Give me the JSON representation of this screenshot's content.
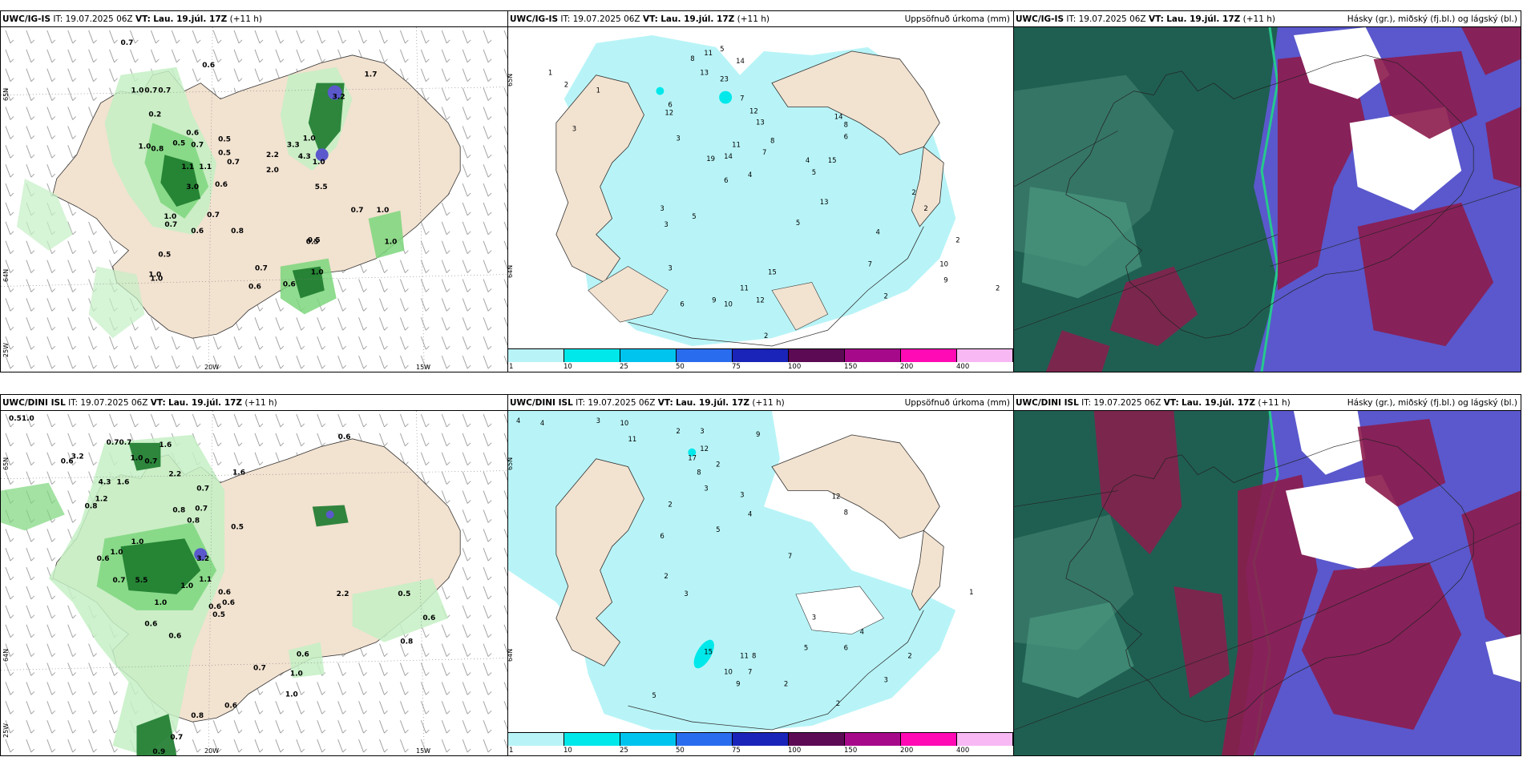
{
  "panels": {
    "p1": {
      "model": "UWC/IG-IS",
      "it_label": "IT:",
      "it_value": "19.07.2025 06Z",
      "vt_label": "VT:",
      "vt_value": "Lau. 19.júl. 17Z",
      "lead": "(+11 h)",
      "right_title": "",
      "labels": [
        "0.7",
        "0.6",
        "1.0",
        "0.7",
        "0.7",
        "0.2",
        "0.6",
        "0.5",
        "0.7",
        "0.5",
        "1.0",
        "0.8",
        "1.1",
        "1.1",
        "3.0",
        "0.5",
        "0.6",
        "0.7",
        "0.7",
        "0.8",
        "1.0",
        "0.6",
        "0.5",
        "1.0",
        "0.7",
        "0.6",
        "0.5",
        "2.2",
        "2.0",
        "3.3",
        "1.0",
        "4.3",
        "1.0",
        "3.2",
        "5.5",
        "1.7",
        "0.7",
        "1.0",
        "0.5",
        "1.0",
        "0.7",
        "0.6",
        "1.0",
        "1.0"
      ],
      "axis": {
        "left_top": "65N",
        "left_mid": "64N",
        "left_bottom": "25W",
        "bottom_left": "20W",
        "bottom_right": "15W"
      }
    },
    "p2": {
      "model": "UWC/IG-IS",
      "it_label": "IT:",
      "it_value": "19.07.2025 06Z",
      "vt_label": "VT:",
      "vt_value": "Lau. 19.júl. 17Z",
      "lead": "(+11 h)",
      "right_title": "Uppsöfnuð úrkoma (mm)",
      "labels": [
        "1",
        "2",
        "1",
        "3",
        "8",
        "11",
        "5",
        "14",
        "13",
        "23",
        "6",
        "12",
        "7",
        "12",
        "13",
        "3",
        "11",
        "19",
        "14",
        "4",
        "6",
        "7",
        "8",
        "15",
        "14",
        "8",
        "6",
        "5",
        "13",
        "4",
        "3",
        "2",
        "2",
        "5",
        "3",
        "15",
        "3",
        "11",
        "12",
        "9",
        "10",
        "6",
        "2",
        "2",
        "4",
        "7",
        "5",
        "10",
        "9",
        "2",
        "2"
      ],
      "axis": {
        "right_top": "65N",
        "right_mid": "64N"
      }
    },
    "p3": {
      "model": "UWC/IG-IS",
      "it_label": "IT:",
      "it_value": "19.07.2025 06Z",
      "vt_label": "VT:",
      "vt_value": "Lau. 19.júl. 17Z",
      "lead": "(+11 h)",
      "right_title": "Hásky (gr.), miðský (fj.bl.) og lágský (bl.)"
    },
    "p4": {
      "model": "UWC/DINI ISL",
      "it_label": "IT:",
      "it_value": "19.07.2025 06Z",
      "vt_label": "VT:",
      "vt_value": "Lau. 19.júl. 17Z",
      "lead": "(+11 h)",
      "right_title": "",
      "labels": [
        "0.5",
        "1.0",
        "0.7",
        "0.7",
        "1.6",
        "0.6",
        "3.2",
        "1.0",
        "0.6",
        "0.7",
        "4.3",
        "1.6",
        "2.2",
        "1.6",
        "1.2",
        "0.7",
        "0.8",
        "0.8",
        "0.8",
        "0.7",
        "0.5",
        "1.0",
        "1.0",
        "3.2",
        "0.6",
        "0.7",
        "5.5",
        "1.0",
        "1.1",
        "0.6",
        "0.6",
        "0.6",
        "1.0",
        "0.5",
        "0.6",
        "0.6",
        "0.7",
        "1.0",
        "2.2",
        "0.5",
        "0.8",
        "0.6",
        "0.6",
        "1.0",
        "0.6",
        "0.8",
        "0.7",
        "0.9"
      ],
      "axis": {
        "left_top": "65N",
        "left_mid": "64N",
        "left_bottom": "25W",
        "bottom_left": "20W",
        "bottom_right": "15W"
      }
    },
    "p5": {
      "model": "UWC/DINI ISL",
      "it_label": "IT:",
      "it_value": "19.07.2025 06Z",
      "vt_label": "VT:",
      "vt_value": "Lau. 19.júl. 17Z",
      "lead": "(+11 h)",
      "right_title": "Uppsöfnuð úrkoma (mm)",
      "labels": [
        "4",
        "4",
        "3",
        "10",
        "2",
        "3",
        "9",
        "12",
        "11",
        "17",
        "2",
        "8",
        "3",
        "12",
        "2",
        "3",
        "4",
        "5",
        "7",
        "8",
        "6",
        "2",
        "3",
        "15",
        "11",
        "8",
        "10",
        "7",
        "9",
        "5",
        "2",
        "2",
        "3",
        "2",
        "3",
        "4",
        "6",
        "5",
        "1"
      ],
      "axis": {
        "right_top": "65N",
        "right_mid": "64N"
      }
    },
    "p6": {
      "model": "UWC/DINI ISL",
      "it_label": "IT:",
      "it_value": "19.07.2025 06Z",
      "vt_label": "VT:",
      "vt_value": "Lau. 19.júl. 17Z",
      "lead": "(+11 h)",
      "right_title": "Hásky (gr.), miðský (fj.bl.) og lágský (bl.)"
    }
  },
  "legend": {
    "ticks": [
      "1",
      "10",
      "25",
      "50",
      "75",
      "100",
      "150",
      "200",
      "400"
    ],
    "colors": [
      "#b8f4f7",
      "#00e8ea",
      "#00c4ee",
      "#2a6cee",
      "#1a24b8",
      "#5c0a54",
      "#a60a8a",
      "#ff0ab4",
      "#f7b8f4"
    ]
  },
  "colors": {
    "land": "#f2e2d0",
    "ocean": "#ffffff",
    "precip_light": "#c4f0c4",
    "precip_mid": "#7cd67c",
    "precip_heavy": "#1c7a2c",
    "precip_vheavy": "#0a3c14",
    "accum_fill": "#b8f4f7",
    "cloud_high": "#1f5f52",
    "cloud_mid": "#8c1c4c",
    "cloud_low": "#5a58cc",
    "cloud_green": "#25c98c"
  }
}
